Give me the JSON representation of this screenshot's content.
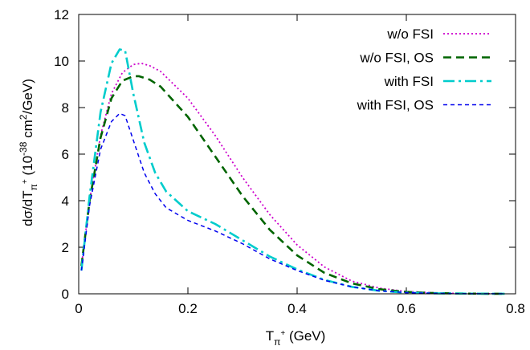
{
  "chart_data": {
    "type": "line",
    "title": "",
    "xlabel": {
      "main": "T",
      "sub": "π",
      "sup": "+",
      "unit": "(GeV)"
    },
    "ylabel": {
      "main": "dσ/dT",
      "sub": "π",
      "sup": "+",
      "unit_pre": "(10",
      "unit_exp": "-38",
      "unit_mid": " cm",
      "unit_exp2": "2",
      "unit_post": "/GeV)"
    },
    "xlim": [
      0,
      0.8
    ],
    "ylim": [
      0,
      12
    ],
    "xticks": [
      0,
      0.2,
      0.4,
      0.6,
      0.8
    ],
    "xtick_labels": [
      "0",
      "0.2",
      "0.4",
      "0.6",
      "0.8"
    ],
    "yticks": [
      0,
      2,
      4,
      6,
      8,
      10,
      12
    ],
    "ytick_labels": [
      "0",
      "2",
      "4",
      "6",
      "8",
      "10",
      "12"
    ],
    "grid": false,
    "legend_position": "top-right",
    "series": [
      {
        "name": "w/o FSI",
        "color": "#cc00cc",
        "style": "dotted",
        "x": [
          0.005,
          0.02,
          0.04,
          0.06,
          0.08,
          0.1,
          0.115,
          0.13,
          0.15,
          0.2,
          0.25,
          0.3,
          0.35,
          0.4,
          0.45,
          0.5,
          0.55,
          0.6,
          0.65,
          0.7,
          0.75,
          0.78
        ],
        "y": [
          1.2,
          4.0,
          6.8,
          8.6,
          9.5,
          9.85,
          9.9,
          9.8,
          9.55,
          8.4,
          6.8,
          5.0,
          3.4,
          2.1,
          1.15,
          0.55,
          0.25,
          0.1,
          0.04,
          0.015,
          0.005,
          0.002
        ]
      },
      {
        "name": "w/o FSI, OS",
        "color": "#006400",
        "style": "dashed",
        "x": [
          0.005,
          0.02,
          0.04,
          0.06,
          0.08,
          0.1,
          0.11,
          0.13,
          0.15,
          0.2,
          0.25,
          0.3,
          0.35,
          0.4,
          0.45,
          0.5,
          0.55,
          0.6,
          0.65,
          0.7,
          0.75,
          0.78
        ],
        "y": [
          1.2,
          4.0,
          6.7,
          8.4,
          9.15,
          9.35,
          9.35,
          9.2,
          8.9,
          7.6,
          5.9,
          4.2,
          2.75,
          1.65,
          0.9,
          0.45,
          0.2,
          0.08,
          0.03,
          0.01,
          0.004,
          0.002
        ]
      },
      {
        "name": "with FSI",
        "color": "#00cccc",
        "style": "dash-dot",
        "x": [
          0.005,
          0.02,
          0.04,
          0.06,
          0.075,
          0.085,
          0.1,
          0.12,
          0.14,
          0.16,
          0.2,
          0.25,
          0.3,
          0.35,
          0.4,
          0.45,
          0.5,
          0.55,
          0.6,
          0.65,
          0.7,
          0.75,
          0.78
        ],
        "y": [
          1.0,
          4.2,
          7.8,
          9.9,
          10.5,
          10.45,
          8.6,
          6.5,
          5.2,
          4.4,
          3.55,
          3.0,
          2.3,
          1.6,
          1.05,
          0.6,
          0.3,
          0.13,
          0.05,
          0.02,
          0.01,
          0.005,
          0.002
        ]
      },
      {
        "name": "with FSI, OS",
        "color": "#0000ee",
        "style": "short-dash",
        "x": [
          0.005,
          0.02,
          0.04,
          0.06,
          0.075,
          0.085,
          0.1,
          0.12,
          0.14,
          0.16,
          0.2,
          0.25,
          0.3,
          0.35,
          0.4,
          0.45,
          0.5,
          0.55,
          0.6,
          0.65,
          0.7,
          0.75,
          0.78
        ],
        "y": [
          1.0,
          3.8,
          6.2,
          7.4,
          7.75,
          7.65,
          6.6,
          5.2,
          4.3,
          3.7,
          3.15,
          2.7,
          2.15,
          1.5,
          1.0,
          0.58,
          0.3,
          0.13,
          0.05,
          0.02,
          0.008,
          0.004,
          0.002
        ]
      }
    ]
  }
}
